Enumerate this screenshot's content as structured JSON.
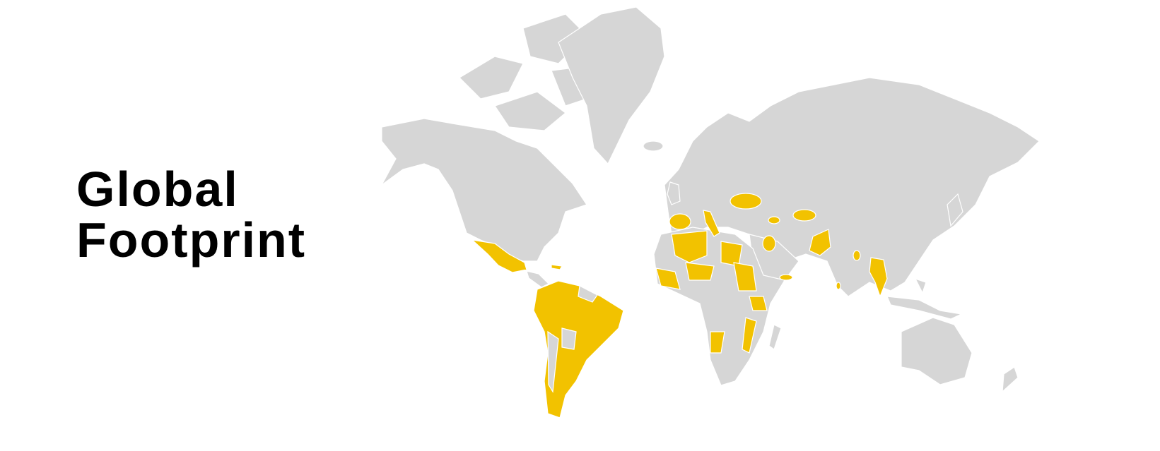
{
  "title": {
    "line1": "Global",
    "line2": "Footprint"
  },
  "map": {
    "land_color": "#D6D6D6",
    "highlight_color": "#F2C200",
    "background_color": "#FFFFFF"
  }
}
